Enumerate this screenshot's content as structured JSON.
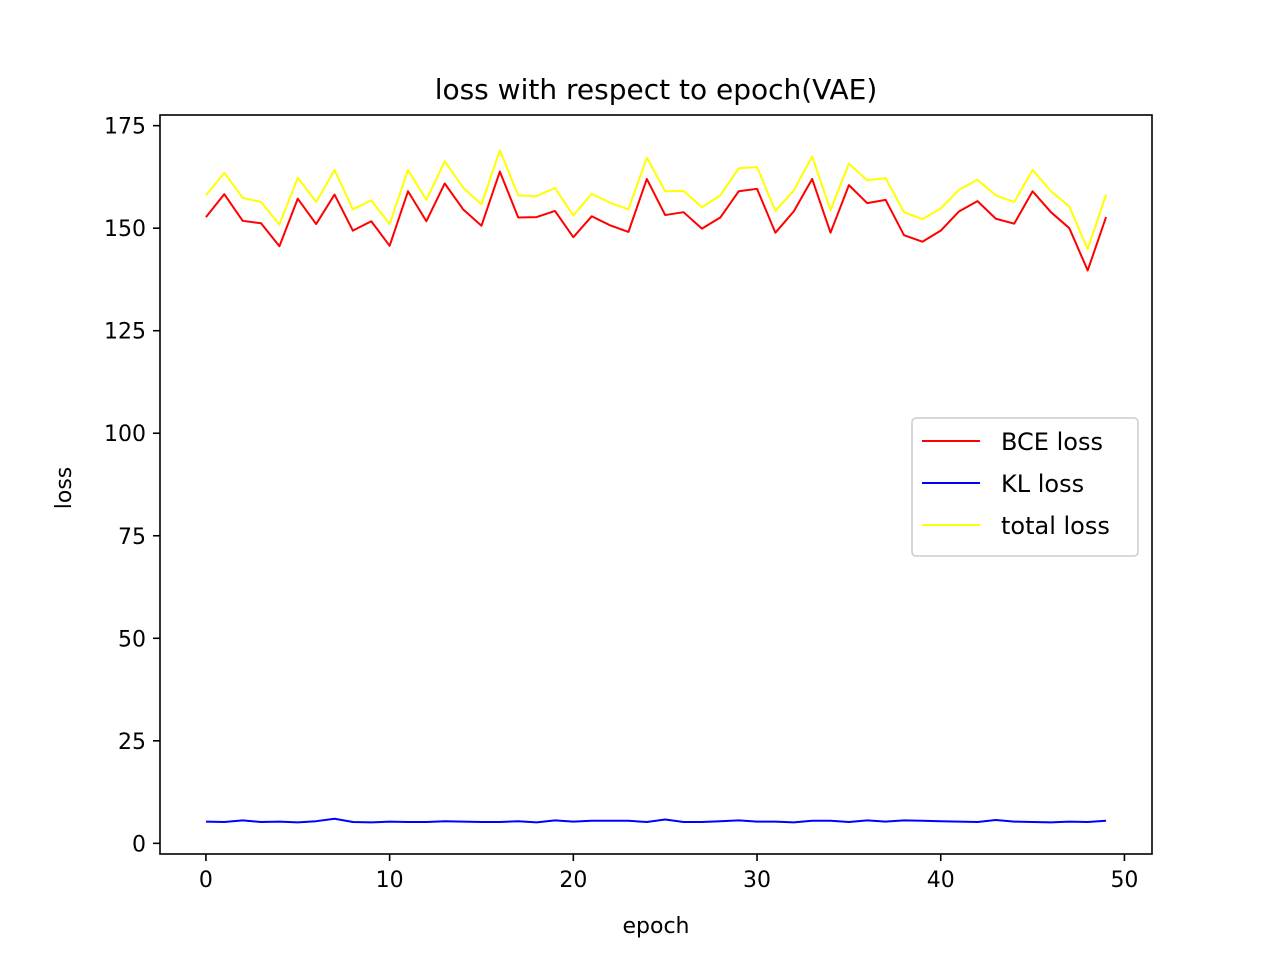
{
  "chart_data": {
    "type": "line",
    "title": "loss with respect to epoch(VAE)",
    "xlabel": "epoch",
    "ylabel": "loss",
    "xlim": [
      -2.5,
      51.5
    ],
    "ylim": [
      -2.6,
      177.6
    ],
    "xticks": [
      0,
      10,
      20,
      30,
      40,
      50
    ],
    "yticks": [
      0,
      25,
      50,
      75,
      100,
      125,
      150,
      175
    ],
    "grid": false,
    "legend_position": "center-right",
    "x": [
      0,
      1,
      2,
      3,
      4,
      5,
      6,
      7,
      8,
      9,
      10,
      11,
      12,
      13,
      14,
      15,
      16,
      17,
      18,
      19,
      20,
      21,
      22,
      23,
      24,
      25,
      26,
      27,
      28,
      29,
      30,
      31,
      32,
      33,
      34,
      35,
      36,
      37,
      38,
      39,
      40,
      41,
      42,
      43,
      44,
      45,
      46,
      47,
      48,
      49
    ],
    "series": [
      {
        "name": "BCE loss",
        "color": "#ff0000",
        "values": [
          152.7,
          158.3,
          151.8,
          151.2,
          145.6,
          157.2,
          151.0,
          158.2,
          149.4,
          151.7,
          145.7,
          159.0,
          151.7,
          160.9,
          154.6,
          150.6,
          163.8,
          152.6,
          152.7,
          154.2,
          147.8,
          152.9,
          150.7,
          149.1,
          162.0,
          153.2,
          153.9,
          149.9,
          152.6,
          159.0,
          159.6,
          148.9,
          154.1,
          162.0,
          148.9,
          160.5,
          156.1,
          156.9,
          148.3,
          146.7,
          149.4,
          154.1,
          156.6,
          152.3,
          151.1,
          159.0,
          153.9,
          150.0,
          139.7,
          152.7
        ]
      },
      {
        "name": "KL loss",
        "color": "#0000ff",
        "values": [
          5.3,
          5.2,
          5.6,
          5.2,
          5.3,
          5.1,
          5.4,
          6.0,
          5.2,
          5.1,
          5.3,
          5.2,
          5.2,
          5.4,
          5.3,
          5.2,
          5.2,
          5.4,
          5.1,
          5.6,
          5.3,
          5.5,
          5.5,
          5.5,
          5.2,
          5.8,
          5.2,
          5.2,
          5.4,
          5.6,
          5.3,
          5.3,
          5.1,
          5.5,
          5.5,
          5.2,
          5.6,
          5.3,
          5.6,
          5.5,
          5.4,
          5.3,
          5.2,
          5.7,
          5.3,
          5.2,
          5.1,
          5.3,
          5.2,
          5.5
        ]
      },
      {
        "name": "total loss",
        "color": "#ffff00",
        "values": [
          158.0,
          163.5,
          157.4,
          156.4,
          150.9,
          162.3,
          156.4,
          164.2,
          154.6,
          156.8,
          151.0,
          164.2,
          156.9,
          166.3,
          159.9,
          155.8,
          169.0,
          158.0,
          157.8,
          159.8,
          153.1,
          158.4,
          156.2,
          154.6,
          167.2,
          159.0,
          159.1,
          155.1,
          158.0,
          164.6,
          164.9,
          154.2,
          159.2,
          167.5,
          154.4,
          165.7,
          161.7,
          162.2,
          153.9,
          152.2,
          154.8,
          159.4,
          161.8,
          158.0,
          156.4,
          164.2,
          159.0,
          155.3,
          144.9,
          158.2
        ]
      }
    ]
  }
}
